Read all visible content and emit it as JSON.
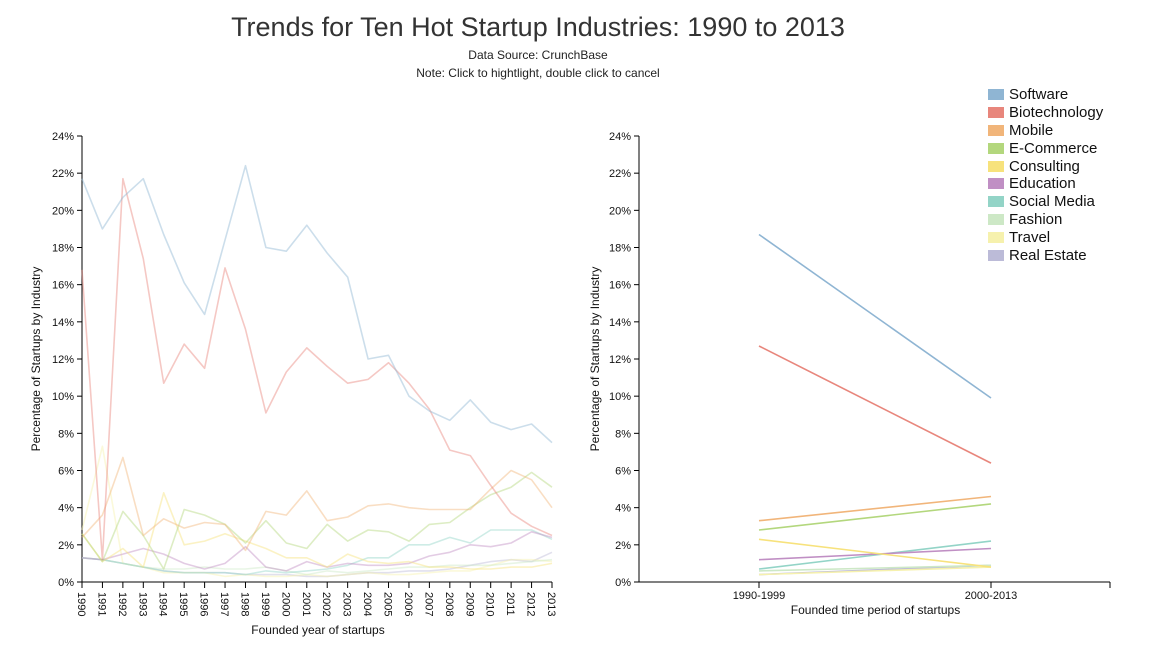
{
  "title": "Trends for Ten Hot Startup Industries: 1990 to 2013",
  "source": "Data Source: CrunchBase",
  "note": "Note: Click to hightlight, double click to cancel",
  "legend": [
    {
      "name": "Software",
      "color": "#8fb5d3"
    },
    {
      "name": "Biotechnology",
      "color": "#e8867c"
    },
    {
      "name": "Mobile",
      "color": "#f1b57a"
    },
    {
      "name": "E-Commerce",
      "color": "#b3d77d"
    },
    {
      "name": "Consulting",
      "color": "#f7e27c"
    },
    {
      "name": "Education",
      "color": "#c08fc4"
    },
    {
      "name": "Social Media",
      "color": "#93d4c7"
    },
    {
      "name": "Fashion",
      "color": "#cde8c6"
    },
    {
      "name": "Travel",
      "color": "#f6f1ad"
    },
    {
      "name": "Real Estate",
      "color": "#bcbbd8"
    }
  ],
  "chart_data": [
    {
      "type": "line",
      "xlabel": "Founded year of startups",
      "ylabel": "Percentage of Startups by Industry",
      "ylim": [
        0,
        24
      ],
      "yticks": [
        0,
        2,
        4,
        6,
        8,
        10,
        12,
        14,
        16,
        18,
        20,
        22,
        24
      ],
      "ytick_labels": [
        "0%",
        "2%",
        "4%",
        "6%",
        "8%",
        "10%",
        "12%",
        "14%",
        "16%",
        "18%",
        "20%",
        "22%",
        "24%"
      ],
      "x": [
        "1990",
        "1991",
        "1992",
        "1993",
        "1994",
        "1995",
        "1996",
        "1997",
        "1998",
        "1999",
        "2000",
        "2001",
        "2002",
        "2003",
        "2004",
        "2005",
        "2006",
        "2007",
        "2008",
        "2009",
        "2010",
        "2011",
        "2012",
        "2013"
      ],
      "series": [
        {
          "name": "Software",
          "values": [
            21.7,
            19.0,
            20.7,
            21.7,
            18.7,
            16.1,
            14.4,
            18.4,
            22.4,
            18.0,
            17.8,
            19.2,
            17.7,
            16.4,
            12.0,
            12.2,
            10.0,
            9.2,
            8.7,
            9.8,
            8.6,
            8.2,
            8.5,
            7.5
          ]
        },
        {
          "name": "Biotechnology",
          "values": [
            16.8,
            1.2,
            21.7,
            17.4,
            10.7,
            12.8,
            11.5,
            16.9,
            13.6,
            9.1,
            11.3,
            12.6,
            11.6,
            10.7,
            10.9,
            11.8,
            10.7,
            9.3,
            7.1,
            6.8,
            5.2,
            3.7,
            3.0,
            2.5
          ]
        },
        {
          "name": "Mobile",
          "values": [
            2.4,
            3.6,
            6.7,
            2.5,
            3.4,
            2.9,
            3.2,
            3.1,
            1.7,
            3.8,
            3.6,
            4.9,
            3.3,
            3.5,
            4.1,
            4.2,
            4.0,
            3.9,
            3.9,
            3.9,
            5.0,
            6.0,
            5.5,
            4.0
          ]
        },
        {
          "name": "E-Commerce",
          "values": [
            2.6,
            1.1,
            3.8,
            2.5,
            0.7,
            3.9,
            3.6,
            3.1,
            2.1,
            3.3,
            2.1,
            1.8,
            3.1,
            2.2,
            2.8,
            2.7,
            2.2,
            3.1,
            3.2,
            4.0,
            4.7,
            5.1,
            5.9,
            5.1
          ]
        },
        {
          "name": "Consulting",
          "values": [
            2.6,
            1.1,
            1.8,
            0.8,
            4.8,
            2.0,
            2.2,
            2.6,
            2.2,
            1.8,
            1.3,
            1.3,
            0.8,
            1.5,
            1.1,
            1.0,
            1.1,
            0.8,
            0.8,
            0.7,
            0.7,
            0.8,
            0.8,
            1.0
          ]
        },
        {
          "name": "Education",
          "values": [
            1.3,
            1.2,
            1.5,
            1.8,
            1.5,
            1.0,
            0.7,
            1.0,
            1.9,
            0.8,
            0.6,
            1.1,
            0.8,
            1.0,
            0.9,
            0.9,
            1.0,
            1.4,
            1.6,
            2.0,
            1.9,
            2.1,
            2.7,
            2.4
          ]
        },
        {
          "name": "Social Media",
          "values": [
            1.3,
            1.2,
            1.0,
            0.8,
            0.6,
            0.5,
            0.5,
            0.5,
            0.4,
            0.6,
            0.5,
            0.6,
            0.7,
            0.9,
            1.3,
            1.3,
            2.0,
            2.0,
            2.4,
            2.1,
            2.8,
            2.8,
            2.8,
            2.3
          ]
        },
        {
          "name": "Fashion",
          "values": [
            1.3,
            1.2,
            1.0,
            0.8,
            0.7,
            0.7,
            0.8,
            0.7,
            0.7,
            0.8,
            0.6,
            0.4,
            0.6,
            0.5,
            0.6,
            0.7,
            0.8,
            0.8,
            0.9,
            0.9,
            0.9,
            1.0,
            1.1,
            1.2
          ]
        },
        {
          "name": "Travel",
          "values": [
            2.8,
            7.3,
            1.0,
            0.8,
            0.5,
            0.5,
            0.5,
            0.3,
            0.4,
            0.3,
            0.3,
            0.4,
            0.3,
            0.4,
            0.5,
            0.4,
            0.4,
            0.5,
            0.6,
            0.6,
            0.9,
            1.2,
            1.2,
            1.1
          ]
        },
        {
          "name": "Real Estate",
          "values": [
            1.3,
            1.2,
            1.0,
            0.8,
            0.6,
            0.5,
            0.5,
            0.5,
            0.4,
            0.4,
            0.4,
            0.3,
            0.3,
            0.4,
            0.5,
            0.5,
            0.6,
            0.6,
            0.7,
            0.9,
            1.1,
            1.2,
            1.1,
            1.6
          ]
        }
      ]
    },
    {
      "type": "line",
      "xlabel": "Founded time period of startups",
      "ylabel": "Percentage of Startups by Industry",
      "ylim": [
        0,
        24
      ],
      "yticks": [
        0,
        2,
        4,
        6,
        8,
        10,
        12,
        14,
        16,
        18,
        20,
        22,
        24
      ],
      "ytick_labels": [
        "0%",
        "2%",
        "4%",
        "6%",
        "8%",
        "10%",
        "12%",
        "14%",
        "16%",
        "18%",
        "20%",
        "22%",
        "24%"
      ],
      "x": [
        "1990-1999",
        "2000-2013"
      ],
      "series": [
        {
          "name": "Software",
          "values": [
            18.7,
            9.9
          ]
        },
        {
          "name": "Biotechnology",
          "values": [
            12.7,
            6.4
          ]
        },
        {
          "name": "Mobile",
          "values": [
            3.3,
            4.6
          ]
        },
        {
          "name": "E-Commerce",
          "values": [
            2.8,
            4.2
          ]
        },
        {
          "name": "Consulting",
          "values": [
            2.3,
            0.8
          ]
        },
        {
          "name": "Education",
          "values": [
            1.2,
            1.8
          ]
        },
        {
          "name": "Social Media",
          "values": [
            0.7,
            2.2
          ]
        },
        {
          "name": "Fashion",
          "values": [
            0.6,
            0.9
          ]
        },
        {
          "name": "Travel",
          "values": [
            0.4,
            0.8
          ]
        },
        {
          "name": "Real Estate",
          "values": [
            0.4,
            0.9
          ]
        }
      ]
    }
  ]
}
